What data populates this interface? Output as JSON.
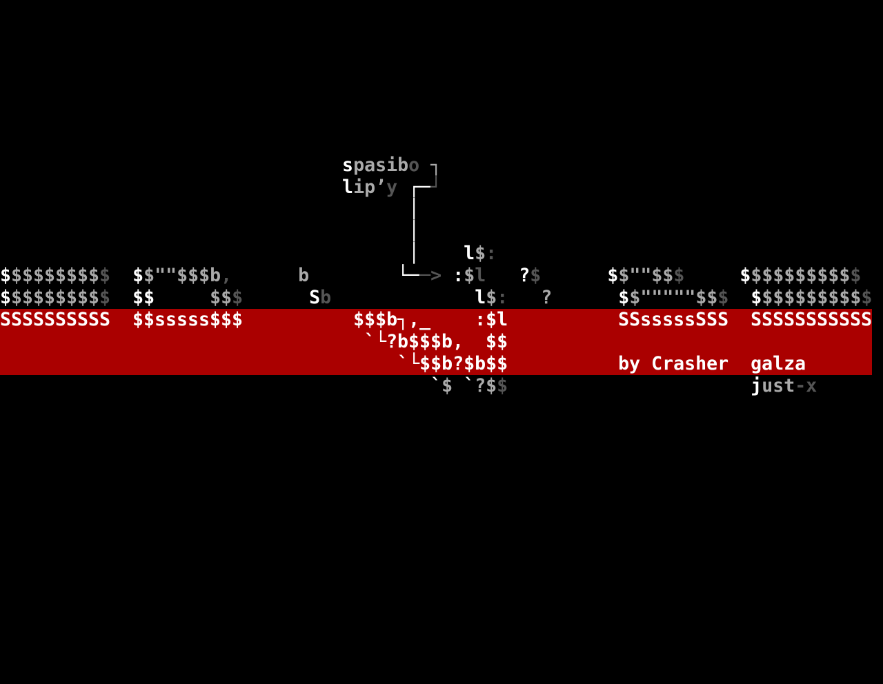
{
  "colors": {
    "w": "#ffffff",
    "g": "#aaaaaa",
    "d": "#555555",
    "band": "#aa0000",
    "background": "#000000"
  },
  "rows": [
    [
      [
        "                               ",
        "w"
      ],
      [
        "s",
        "w"
      ],
      [
        "pasib",
        "g"
      ],
      [
        "o",
        "d"
      ],
      [
        " ",
        "w"
      ],
      [
        "┐",
        "g"
      ]
    ],
    [
      [
        "                               ",
        "w"
      ],
      [
        "l",
        "w"
      ],
      [
        "ip’",
        "g"
      ],
      [
        "y",
        "d"
      ],
      [
        " ",
        "w"
      ],
      [
        "┌─",
        "w"
      ],
      [
        "┘",
        "d"
      ]
    ],
    [
      [
        "                                     ",
        "w"
      ],
      [
        "│",
        "w"
      ]
    ],
    [
      [
        "                                     ",
        "w"
      ],
      [
        "│",
        "w"
      ]
    ],
    [
      [
        "                                     ",
        "w"
      ],
      [
        "│",
        "w"
      ],
      [
        "    ",
        "w"
      ],
      [
        "l",
        "w"
      ],
      [
        "$",
        "g"
      ],
      [
        ":",
        "d"
      ]
    ],
    [
      [
        "$",
        "w"
      ],
      [
        "$$$$$$$$",
        "g"
      ],
      [
        "$",
        "d"
      ],
      [
        "  ",
        "w"
      ],
      [
        "$",
        "w"
      ],
      [
        "$\"\"$$$b",
        "g"
      ],
      [
        ",",
        "d"
      ],
      [
        "      ",
        "w"
      ],
      [
        "b",
        "g"
      ],
      [
        "        ",
        "w"
      ],
      [
        "└─",
        "w"
      ],
      [
        "─>",
        "d"
      ],
      [
        " ",
        "w"
      ],
      [
        ":",
        "w"
      ],
      [
        "$",
        "g"
      ],
      [
        "l",
        "d"
      ],
      [
        "   ",
        "w"
      ],
      [
        "?",
        "w"
      ],
      [
        "$",
        "d"
      ],
      [
        "      ",
        "w"
      ],
      [
        "$",
        "w"
      ],
      [
        "$\"\"$$",
        "g"
      ],
      [
        "$",
        "d"
      ],
      [
        "     ",
        "w"
      ],
      [
        "$",
        "w"
      ],
      [
        "$$$$$$$$$",
        "g"
      ],
      [
        "$",
        "d"
      ]
    ],
    [
      [
        "$",
        "w"
      ],
      [
        "$$$$$$$$",
        "g"
      ],
      [
        "$",
        "d"
      ],
      [
        "  ",
        "w"
      ],
      [
        "$$",
        "w"
      ],
      [
        "     ",
        "w"
      ],
      [
        "$$",
        "g"
      ],
      [
        "$",
        "d"
      ],
      [
        "      ",
        "w"
      ],
      [
        "S",
        "w"
      ],
      [
        "b",
        "d"
      ],
      [
        "             ",
        "w"
      ],
      [
        "l",
        "w"
      ],
      [
        "$",
        "g"
      ],
      [
        ":",
        "d"
      ],
      [
        "   ",
        "w"
      ],
      [
        "?",
        "g"
      ],
      [
        "      ",
        "w"
      ],
      [
        "$",
        "w"
      ],
      [
        "$\"\"\"\"\"$$",
        "g"
      ],
      [
        "$",
        "d"
      ],
      [
        "  ",
        "w"
      ],
      [
        "$",
        "w"
      ],
      [
        "$$$$$$$$$",
        "g"
      ],
      [
        "$",
        "d"
      ]
    ],
    [
      [
        "SSSSSSSSSS",
        "w"
      ],
      [
        "  ",
        "w"
      ],
      [
        "$$sssss$$$",
        "w"
      ],
      [
        "          ",
        "w"
      ],
      [
        "$$$b┐,_",
        "w"
      ],
      [
        "    ",
        "w"
      ],
      [
        ":$l",
        "w"
      ],
      [
        "          ",
        "w"
      ],
      [
        "SSsssssSSS",
        "w"
      ],
      [
        "  ",
        "w"
      ],
      [
        "SSSSSSSSSSS",
        "w"
      ]
    ],
    [
      [
        "                                 ",
        "w"
      ],
      [
        "`└?b$$$b,  $$",
        "w"
      ]
    ],
    [
      [
        "                                    ",
        "w"
      ],
      [
        "`└$$b?$b$$",
        "w"
      ],
      [
        "          ",
        "w"
      ],
      [
        "by Crasher",
        "w"
      ],
      [
        "  ",
        "w"
      ],
      [
        "galza",
        "w"
      ]
    ],
    [
      [
        "                                       ",
        "w"
      ],
      [
        "`",
        "w"
      ],
      [
        "$",
        "g"
      ],
      [
        " ",
        "w"
      ],
      [
        "`",
        "w"
      ],
      [
        "?$",
        "g"
      ],
      [
        "$",
        "d"
      ],
      [
        "                      ",
        "w"
      ],
      [
        "j",
        "w"
      ],
      [
        "ust",
        "g"
      ],
      [
        "-x",
        "d"
      ]
    ]
  ],
  "band_rows": [
    7,
    8,
    9
  ]
}
